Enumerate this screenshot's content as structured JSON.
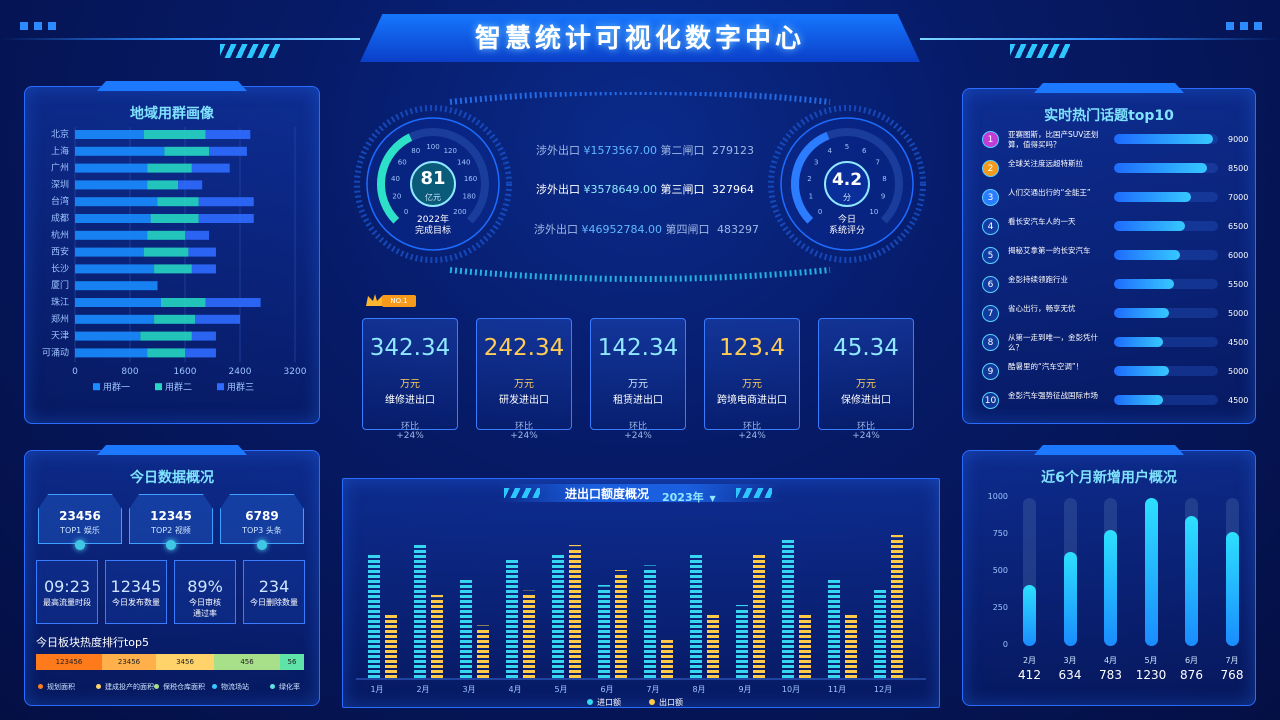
{
  "header": {
    "title": "智慧统计可视化数字中心"
  },
  "region_panel": {
    "title": "地域用群画像",
    "chart_data": {
      "type": "bar",
      "orientation": "horizontal",
      "stacked": true,
      "categories": [
        "北京",
        "上海",
        "广州",
        "深圳",
        "台湾",
        "成都",
        "杭州",
        "西安",
        "长沙",
        "厦门",
        "珠江",
        "郑州",
        "天津",
        "可涌动"
      ],
      "series": [
        {
          "name": "用群一",
          "color": "#1a8cff",
          "values": [
            1000,
            1300,
            1050,
            1050,
            1200,
            1100,
            1050,
            1000,
            1150,
            1200,
            1250,
            1150,
            950,
            1050
          ]
        },
        {
          "name": "用群二",
          "color": "#26d6c2",
          "values": [
            900,
            650,
            650,
            450,
            600,
            700,
            550,
            650,
            550,
            0,
            650,
            600,
            750,
            550
          ]
        },
        {
          "name": "用群三",
          "color": "#2f6bff",
          "values": [
            650,
            550,
            550,
            350,
            800,
            800,
            350,
            400,
            350,
            0,
            800,
            650,
            350,
            450
          ]
        }
      ],
      "xlim": [
        0,
        3200
      ],
      "xticks": [
        "0",
        "800",
        "1600",
        "2400",
        "3200"
      ]
    }
  },
  "gauge_left": {
    "value": "81",
    "unit": "亿元",
    "label1": "2022年",
    "label2": "完成目标",
    "ticks": [
      "0",
      "20",
      "40",
      "60",
      "80",
      "100",
      "120",
      "140",
      "160",
      "180",
      "200"
    ],
    "fraction": 0.405
  },
  "gauge_right": {
    "value": "4.2",
    "unit": "分",
    "label1": "今日",
    "label2": "系统评分",
    "ticks": [
      "0",
      "1",
      "2",
      "3",
      "4",
      "5",
      "6",
      "7",
      "8",
      "9",
      "10"
    ],
    "fraction": 0.42
  },
  "center_info": [
    {
      "prefix": "涉外出口",
      "amount": "¥1573567.00",
      "gate": "第二闸口",
      "num": "279123"
    },
    {
      "prefix": "涉外出口",
      "amount": "¥3578649.00",
      "gate": "第三闸口",
      "num": "327964"
    },
    {
      "prefix": "涉外出口",
      "amount": "¥46952784.00",
      "gate": "第四闸口",
      "num": "483297"
    }
  ],
  "no1_badge": "NO.1",
  "kpis": [
    {
      "value": "342.34",
      "unit": "万元",
      "label": "维修进出口",
      "cmp": "环比",
      "pct": "+24%",
      "color": "#8fe8ff"
    },
    {
      "value": "242.34",
      "unit": "万元",
      "label": "研发进出口",
      "cmp": "环比",
      "pct": "+24%",
      "color": "#ffcc55"
    },
    {
      "value": "142.34",
      "unit": "万元",
      "label": "租赁进出口",
      "cmp": "环比",
      "pct": "+24%",
      "color": "#8fe8ff"
    },
    {
      "value": "123.4",
      "unit": "万元",
      "label": "跨境电商进出口",
      "cmp": "环比",
      "pct": "+24%",
      "color": "#ffcc55"
    },
    {
      "value": "45.34",
      "unit": "万元",
      "label": "保修进出口",
      "cmp": "环比",
      "pct": "+24%",
      "color": "#8fe8ff"
    }
  ],
  "overview": {
    "title": "今日数据概况",
    "top3": [
      {
        "num": "23456",
        "label": "TOP1 娱乐"
      },
      {
        "num": "12345",
        "label": "TOP2 视频"
      },
      {
        "num": "6789",
        "label": "TOP3 头条"
      }
    ],
    "stats": [
      {
        "num": "09:23",
        "label": "最高流量时段"
      },
      {
        "num": "12345",
        "label": "今日发布数量"
      },
      {
        "num": "89%",
        "label": "今日审核\n通过率"
      },
      {
        "num": "234",
        "label": "今日删除数量"
      }
    ],
    "heat_title": "今日板块热度排行top5",
    "heat": [
      {
        "value": "123456",
        "color": "#ff7a1a"
      },
      {
        "value": "23456",
        "color": "#ffb04a"
      },
      {
        "value": "3456",
        "color": "#ffd36a"
      },
      {
        "value": "456",
        "color": "#a8e08a"
      },
      {
        "value": "56",
        "color": "#5fe3a8"
      }
    ],
    "heat_legend": [
      {
        "label": "规划面积",
        "color": "#ff7a1a"
      },
      {
        "label": "建成投产的面积",
        "color": "#ffd36a"
      },
      {
        "label": "保税仓库面积",
        "color": "#a8e08a"
      },
      {
        "label": "物流场站",
        "color": "#36c8ff"
      },
      {
        "label": "绿化率",
        "color": "#5fe3e0"
      }
    ]
  },
  "trade": {
    "title": "进出口额度概况",
    "year": "2023年",
    "chart_data": {
      "type": "bar",
      "categories": [
        "1月",
        "2月",
        "3月",
        "4月",
        "5月",
        "6月",
        "7月",
        "8月",
        "9月",
        "10月",
        "11月",
        "12月"
      ],
      "series": [
        {
          "name": "进口额",
          "color": "#36d6f0",
          "values": [
            78,
            85,
            62,
            75,
            78,
            58,
            70,
            78,
            45,
            88,
            62,
            56
          ]
        },
        {
          "name": "出口额",
          "color": "#ffc94a",
          "values": [
            40,
            52,
            32,
            54,
            83,
            67,
            24,
            40,
            78,
            40,
            40,
            90
          ]
        }
      ],
      "ylim": [
        0,
        100
      ],
      "legend": "bottom"
    }
  },
  "topics": {
    "title": "实时热门话题top10",
    "items": [
      {
        "rank": "1",
        "text": "亚赛图斯，比国产SUV还划算，值得买吗？",
        "value": "9000",
        "num": 9000
      },
      {
        "rank": "2",
        "text": "全球关注度远超特斯拉",
        "value": "8500",
        "num": 8500
      },
      {
        "rank": "3",
        "text": "人们交通出行的“全能王”",
        "value": "7000",
        "num": 7000
      },
      {
        "rank": "4",
        "text": "看长安汽车人的一天",
        "value": "6500",
        "num": 6500
      },
      {
        "rank": "5",
        "text": "揭秘艾拿第一的长安汽车",
        "value": "6000",
        "num": 6000
      },
      {
        "rank": "6",
        "text": "金彭持续领跑行业",
        "value": "5500",
        "num": 5500
      },
      {
        "rank": "7",
        "text": "省心出行，畅享无忧",
        "value": "5000",
        "num": 5000
      },
      {
        "rank": "8",
        "text": "从第一走到唯一，金彭凭什么？",
        "value": "4500",
        "num": 4500
      },
      {
        "rank": "9",
        "text": "酷暑里的“汽车空调”！",
        "value": "5000",
        "num": 5000
      },
      {
        "rank": "10",
        "text": "金彭汽车强势征战国际市场",
        "value": "4500",
        "num": 4500
      }
    ],
    "max": 9500
  },
  "new_users": {
    "title": "近6个月新增用户概况",
    "chart_data": {
      "type": "bar",
      "categories": [
        "2月",
        "3月",
        "4月",
        "5月",
        "6月",
        "7月"
      ],
      "values": [
        412,
        634,
        783,
        1230,
        876,
        768
      ],
      "value_labels": [
        "412",
        "634",
        "783",
        "1230",
        "876",
        "768"
      ],
      "yticks": [
        "1000",
        "750",
        "500",
        "250",
        "0"
      ],
      "ylim": [
        0,
        1000
      ]
    }
  }
}
